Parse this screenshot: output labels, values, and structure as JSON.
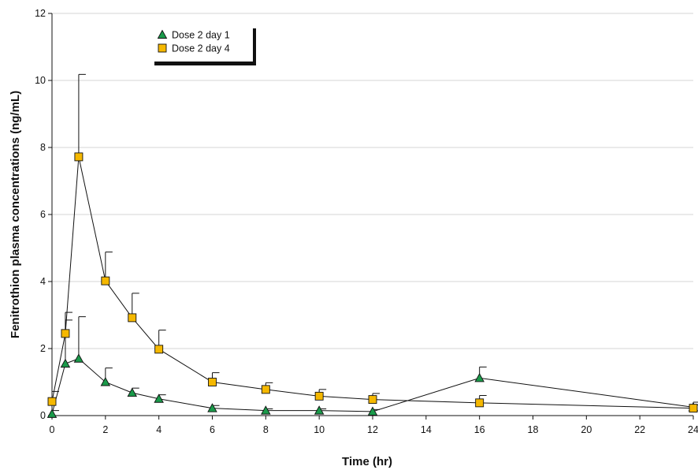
{
  "chart_data": {
    "type": "line",
    "title": "",
    "xlabel": "Time (hr)",
    "ylabel": "Fenitrothion plasma concentrations (ng/mL)",
    "xlim": [
      0,
      24
    ],
    "ylim": [
      0,
      12
    ],
    "x_ticks": [
      "0",
      "2",
      "4",
      "6",
      "8",
      "10",
      "12",
      "14",
      "16",
      "18",
      "20",
      "22",
      "24"
    ],
    "y_ticks": [
      "0",
      "2",
      "4",
      "6",
      "8",
      "10",
      "12"
    ],
    "grid": "horizontal",
    "legend": "top-left",
    "series": [
      {
        "name": "Dose 2 day 1",
        "marker": "triangle",
        "color": "#1a9a4a",
        "x": [
          0,
          0.5,
          1,
          2,
          3,
          4,
          6,
          8,
          10,
          12,
          16,
          24
        ],
        "values": [
          0.05,
          1.55,
          1.7,
          1.0,
          0.68,
          0.5,
          0.22,
          0.15,
          0.15,
          0.12,
          1.12,
          0.25
        ],
        "error_upper": [
          0.15,
          2.85,
          2.95,
          1.42,
          0.82,
          0.62,
          0.3,
          0.2,
          0.2,
          0.18,
          1.45,
          0.32
        ]
      },
      {
        "name": "Dose 2 day 4",
        "marker": "square",
        "color": "#f5b800",
        "x": [
          0,
          0.5,
          1,
          2,
          3,
          4,
          6,
          8,
          10,
          12,
          16,
          24
        ],
        "values": [
          0.42,
          2.45,
          7.72,
          4.02,
          2.92,
          1.98,
          1.0,
          0.78,
          0.58,
          0.48,
          0.38,
          0.22
        ],
        "error_upper": [
          0.72,
          3.08,
          10.18,
          4.88,
          3.65,
          2.55,
          1.28,
          0.98,
          0.78,
          0.66,
          0.6,
          0.4
        ]
      }
    ]
  }
}
